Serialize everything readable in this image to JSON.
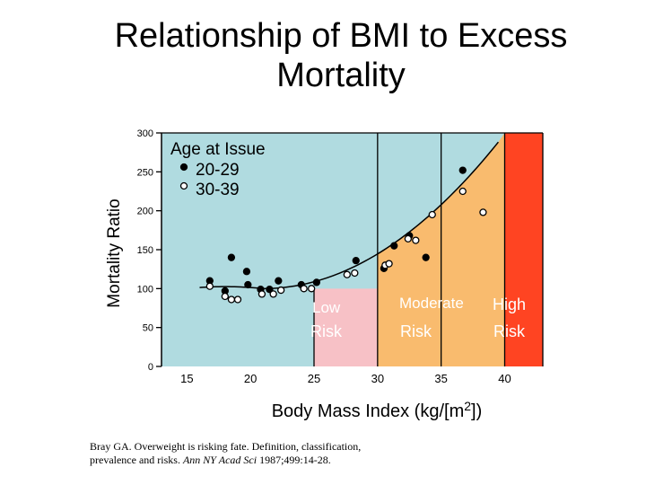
{
  "chart_data": {
    "type": "scatter",
    "title_line1": "Relationship of BMI to Excess",
    "title_line2": "Mortality",
    "xlabel": "Body Mass Index (kg/[m",
    "xlabel_sup": "2",
    "xlabel_end": "])",
    "ylabel": "Mortality Ratio",
    "xlim": [
      13,
      43
    ],
    "ylim": [
      0,
      300
    ],
    "x_ticks": [
      15,
      20,
      25,
      30,
      35,
      40
    ],
    "y_ticks": [
      0,
      50,
      100,
      150,
      200,
      250,
      300
    ],
    "grid": false,
    "legend": {
      "title": "Age at Issue",
      "placement": "top-left",
      "entries": [
        "20-29",
        "30-39"
      ]
    },
    "zones": [
      {
        "name": "low",
        "label_line1": "Low",
        "label_line2": "Risk",
        "color": "#f7c1c6"
      },
      {
        "name": "moderate",
        "label_line1": "Moderate",
        "label_line2": "Risk",
        "color": "#f9bb6e"
      },
      {
        "name": "high",
        "label_line1": "High",
        "label_line2": "Risk",
        "color": "#ff4422"
      },
      {
        "name": "background",
        "color": "#b0dbe0"
      }
    ],
    "series": [
      {
        "name": "20-29",
        "marker": "filled",
        "points": [
          [
            16.8,
            110
          ],
          [
            18.0,
            97
          ],
          [
            18.5,
            140
          ],
          [
            19.7,
            122
          ],
          [
            19.8,
            105
          ],
          [
            20.8,
            99
          ],
          [
            21.5,
            99
          ],
          [
            22.2,
            110
          ],
          [
            24.0,
            105
          ],
          [
            25.2,
            108
          ],
          [
            28.3,
            136
          ],
          [
            30.5,
            126
          ],
          [
            31.3,
            155
          ],
          [
            32.5,
            168
          ],
          [
            33.8,
            140
          ],
          [
            36.7,
            252
          ]
        ]
      },
      {
        "name": "30-39",
        "marker": "open",
        "points": [
          [
            16.8,
            103
          ],
          [
            18.0,
            90
          ],
          [
            18.5,
            86
          ],
          [
            19.0,
            86
          ],
          [
            20.9,
            93
          ],
          [
            21.8,
            93
          ],
          [
            22.4,
            98
          ],
          [
            24.2,
            100
          ],
          [
            24.8,
            100
          ],
          [
            27.6,
            118
          ],
          [
            28.2,
            120
          ],
          [
            30.6,
            130
          ],
          [
            30.9,
            132
          ],
          [
            32.4,
            164
          ],
          [
            33.0,
            162
          ],
          [
            34.3,
            195
          ],
          [
            36.7,
            225
          ],
          [
            38.3,
            198
          ]
        ]
      }
    ]
  },
  "citation": {
    "text1": "Bray GA.  Overweight is risking fate.  Definition,  classification, prevalence and risks.  ",
    "journal": "Ann NY Acad Sci",
    "text2": " 1987;499:14-28."
  }
}
